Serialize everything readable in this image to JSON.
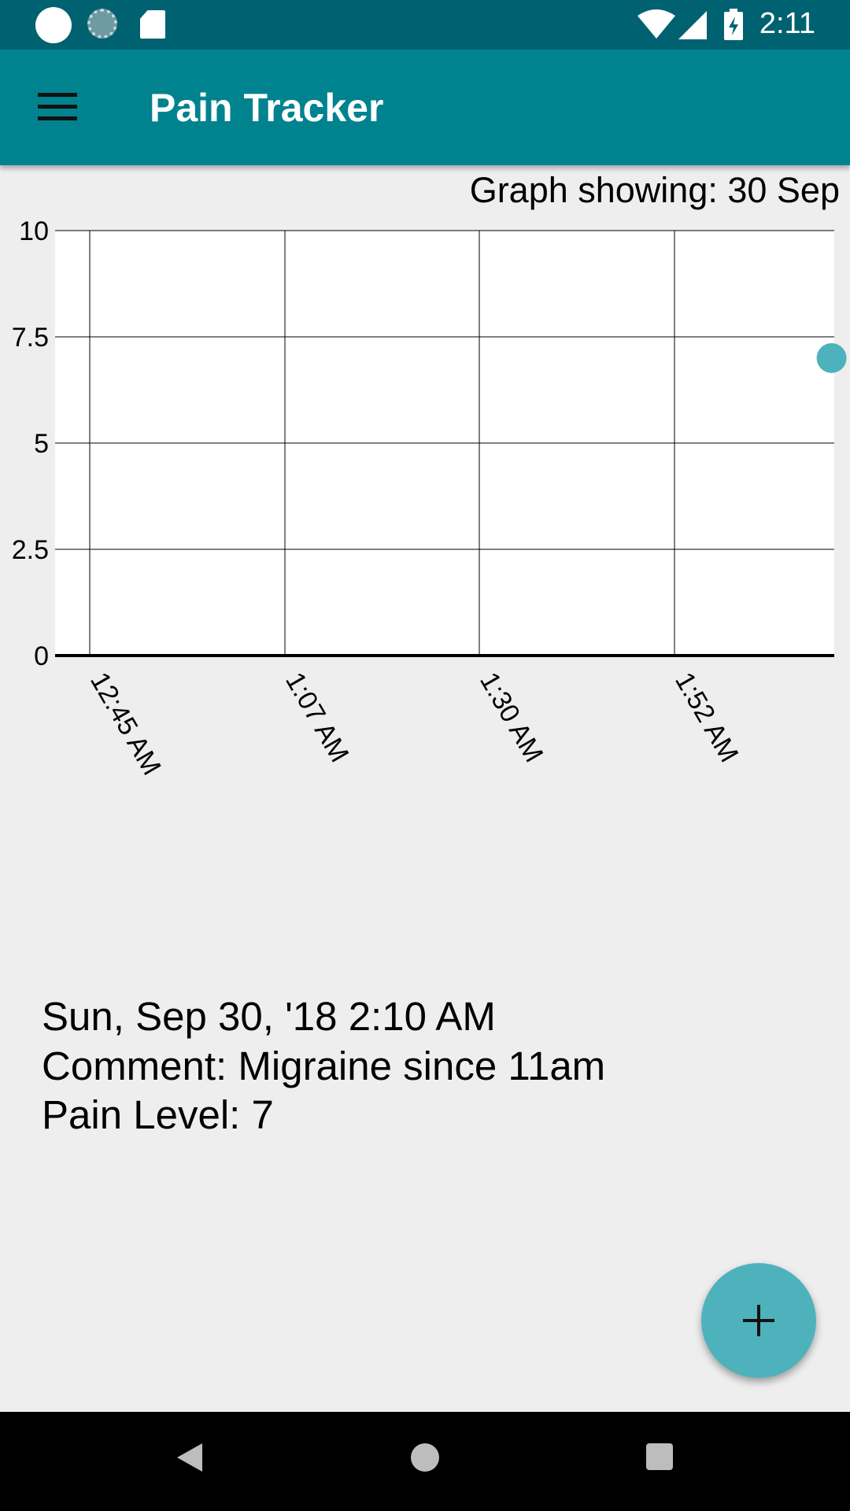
{
  "status_bar": {
    "time": "2:11",
    "icons": [
      "notification-dot-icon",
      "sync-icon",
      "sd-card-icon",
      "wifi-icon",
      "cell-signal-icon",
      "battery-charging-icon"
    ]
  },
  "app_bar": {
    "menu_icon": "menu-icon",
    "title": "Pain Tracker"
  },
  "graph": {
    "caption": "Graph showing: 30 Sep"
  },
  "chart_data": {
    "type": "scatter",
    "title": "",
    "xlabel": "",
    "ylabel": "",
    "x_tick_labels": [
      "12:45 AM",
      "1:07 AM",
      "1:30 AM",
      "1:52 AM"
    ],
    "y_tick_labels": [
      "0",
      "2.5",
      "5",
      "7.5",
      "10"
    ],
    "ylim": [
      0,
      10
    ],
    "grid": true,
    "series": [
      {
        "x": [
          "2:10 AM"
        ],
        "y": [
          7
        ]
      }
    ],
    "point_color": "#4eb2bd"
  },
  "entry": {
    "date": "Sun, Sep 30, '18 2:10 AM",
    "comment": "Comment: Migraine since 11am",
    "pain_level": "Pain Level: 7"
  },
  "fab": {
    "icon": "plus-icon"
  },
  "nav_bar": {
    "icons": [
      "back-icon",
      "home-icon",
      "recents-icon"
    ]
  },
  "colors": {
    "status_bar": "#006270",
    "app_bar": "#00838f",
    "accent": "#4eb2bd",
    "background": "#eeeeee"
  }
}
